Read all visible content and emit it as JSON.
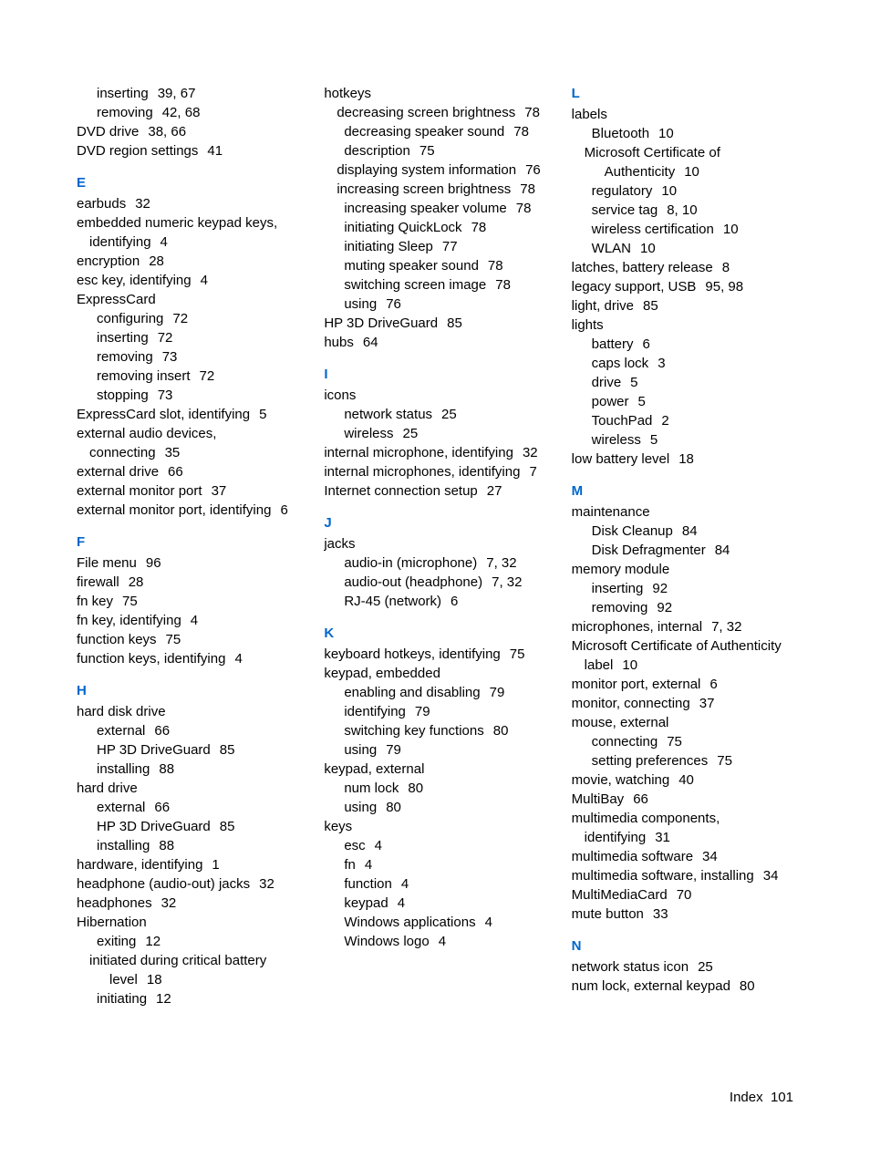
{
  "footer": {
    "label": "Index",
    "page": "101"
  },
  "columns": [
    [
      {
        "type": "sub",
        "term": "inserting",
        "pages": "39,  67"
      },
      {
        "type": "sub",
        "term": "removing",
        "pages": "42,  68"
      },
      {
        "type": "entry",
        "term": "DVD drive",
        "pages": "38,  66"
      },
      {
        "type": "entry",
        "term": "DVD region settings",
        "pages": "41"
      },
      {
        "type": "letter",
        "text": "E"
      },
      {
        "type": "entry",
        "term": "earbuds",
        "pages": "32"
      },
      {
        "type": "entry-hang",
        "term": "embedded numeric keypad keys, identifying",
        "pages": "4"
      },
      {
        "type": "entry",
        "term": "encryption",
        "pages": "28"
      },
      {
        "type": "entry",
        "term": "esc key, identifying",
        "pages": "4"
      },
      {
        "type": "entry",
        "term": "ExpressCard",
        "pages": ""
      },
      {
        "type": "sub",
        "term": "configuring",
        "pages": "72"
      },
      {
        "type": "sub",
        "term": "inserting",
        "pages": "72"
      },
      {
        "type": "sub",
        "term": "removing",
        "pages": "73"
      },
      {
        "type": "sub",
        "term": "removing insert",
        "pages": "72"
      },
      {
        "type": "sub",
        "term": "stopping",
        "pages": "73"
      },
      {
        "type": "entry",
        "term": "ExpressCard slot, identifying",
        "pages": "5"
      },
      {
        "type": "entry-hang",
        "term": "external audio devices, connecting",
        "pages": "35"
      },
      {
        "type": "entry",
        "term": "external drive",
        "pages": "66"
      },
      {
        "type": "entry",
        "term": "external monitor port",
        "pages": "37"
      },
      {
        "type": "entry-hang",
        "term": "external monitor port, identifying",
        "pages": "6"
      },
      {
        "type": "letter",
        "text": "F"
      },
      {
        "type": "entry",
        "term": "File menu",
        "pages": "96"
      },
      {
        "type": "entry",
        "term": "firewall",
        "pages": "28"
      },
      {
        "type": "entry",
        "term": "fn key",
        "pages": "75"
      },
      {
        "type": "entry",
        "term": "fn key, identifying",
        "pages": "4"
      },
      {
        "type": "entry",
        "term": "function keys",
        "pages": "75"
      },
      {
        "type": "entry",
        "term": "function keys, identifying",
        "pages": "4"
      },
      {
        "type": "letter",
        "text": "H"
      },
      {
        "type": "entry",
        "term": "hard disk drive",
        "pages": ""
      },
      {
        "type": "sub",
        "term": "external",
        "pages": "66"
      },
      {
        "type": "sub",
        "term": "HP 3D DriveGuard",
        "pages": "85"
      },
      {
        "type": "sub",
        "term": "installing",
        "pages": "88"
      },
      {
        "type": "entry",
        "term": "hard drive",
        "pages": ""
      },
      {
        "type": "sub",
        "term": "external",
        "pages": "66"
      },
      {
        "type": "sub",
        "term": "HP 3D DriveGuard",
        "pages": "85"
      },
      {
        "type": "sub",
        "term": "installing",
        "pages": "88"
      },
      {
        "type": "entry",
        "term": "hardware, identifying",
        "pages": "1"
      },
      {
        "type": "entry",
        "term": "headphone (audio-out) jacks",
        "pages": "32"
      },
      {
        "type": "entry",
        "term": "headphones",
        "pages": "32"
      },
      {
        "type": "entry",
        "term": "Hibernation",
        "pages": ""
      },
      {
        "type": "sub",
        "term": "exiting",
        "pages": "12"
      },
      {
        "type": "sub-hang",
        "term": "initiated during critical battery level",
        "pages": "18"
      },
      {
        "type": "sub",
        "term": "initiating",
        "pages": "12"
      }
    ],
    [
      {
        "type": "entry",
        "term": "hotkeys",
        "pages": ""
      },
      {
        "type": "sub-hang",
        "term": "decreasing screen brightness",
        "pages": "78"
      },
      {
        "type": "sub",
        "term": "decreasing speaker sound",
        "pages": "78"
      },
      {
        "type": "sub",
        "term": "description",
        "pages": "75"
      },
      {
        "type": "sub-hang",
        "term": "displaying system information",
        "pages": "76"
      },
      {
        "type": "sub-hang",
        "term": "increasing screen brightness",
        "pages": "78"
      },
      {
        "type": "sub",
        "term": "increasing speaker volume",
        "pages": "78"
      },
      {
        "type": "sub",
        "term": "initiating QuickLock",
        "pages": "78"
      },
      {
        "type": "sub",
        "term": "initiating Sleep",
        "pages": "77"
      },
      {
        "type": "sub",
        "term": "muting speaker sound",
        "pages": "78"
      },
      {
        "type": "sub",
        "term": "switching screen image",
        "pages": "78"
      },
      {
        "type": "sub",
        "term": "using",
        "pages": "76"
      },
      {
        "type": "entry",
        "term": "HP 3D DriveGuard",
        "pages": "85"
      },
      {
        "type": "entry",
        "term": "hubs",
        "pages": "64"
      },
      {
        "type": "letter",
        "text": "I"
      },
      {
        "type": "entry",
        "term": "icons",
        "pages": ""
      },
      {
        "type": "sub",
        "term": "network status",
        "pages": "25"
      },
      {
        "type": "sub",
        "term": "wireless",
        "pages": "25"
      },
      {
        "type": "entry-hang",
        "term": "internal microphone, identifying",
        "pages": "32"
      },
      {
        "type": "entry-hang",
        "term": "internal microphones, identifying",
        "pages": "7"
      },
      {
        "type": "entry",
        "term": "Internet connection setup",
        "pages": "27"
      },
      {
        "type": "letter",
        "text": "J"
      },
      {
        "type": "entry",
        "term": "jacks",
        "pages": ""
      },
      {
        "type": "sub",
        "term": "audio-in (microphone)",
        "pages": "7,  32"
      },
      {
        "type": "sub",
        "term": "audio-out (headphone)",
        "pages": "7,  32"
      },
      {
        "type": "sub",
        "term": "RJ-45 (network)",
        "pages": "6"
      },
      {
        "type": "letter",
        "text": "K"
      },
      {
        "type": "entry",
        "term": "keyboard hotkeys, identifying",
        "pages": "75"
      },
      {
        "type": "entry",
        "term": "keypad, embedded",
        "pages": ""
      },
      {
        "type": "sub",
        "term": "enabling and disabling",
        "pages": "79"
      },
      {
        "type": "sub",
        "term": "identifying",
        "pages": "79"
      },
      {
        "type": "sub",
        "term": "switching key functions",
        "pages": "80"
      },
      {
        "type": "sub",
        "term": "using",
        "pages": "79"
      },
      {
        "type": "entry",
        "term": "keypad, external",
        "pages": ""
      },
      {
        "type": "sub",
        "term": "num lock",
        "pages": "80"
      },
      {
        "type": "sub",
        "term": "using",
        "pages": "80"
      },
      {
        "type": "entry",
        "term": "keys",
        "pages": ""
      },
      {
        "type": "sub",
        "term": "esc",
        "pages": "4"
      },
      {
        "type": "sub",
        "term": "fn",
        "pages": "4"
      },
      {
        "type": "sub",
        "term": "function",
        "pages": "4"
      },
      {
        "type": "sub",
        "term": "keypad",
        "pages": "4"
      },
      {
        "type": "sub",
        "term": "Windows applications",
        "pages": "4"
      },
      {
        "type": "sub",
        "term": "Windows logo",
        "pages": "4"
      }
    ],
    [
      {
        "type": "letter",
        "text": "L",
        "first": true
      },
      {
        "type": "entry",
        "term": "labels",
        "pages": ""
      },
      {
        "type": "sub",
        "term": "Bluetooth",
        "pages": "10"
      },
      {
        "type": "sub-hang",
        "term": "Microsoft Certificate of Authenticity",
        "pages": "10"
      },
      {
        "type": "sub",
        "term": "regulatory",
        "pages": "10"
      },
      {
        "type": "sub",
        "term": "service tag",
        "pages": "8,  10"
      },
      {
        "type": "sub",
        "term": "wireless certification",
        "pages": "10"
      },
      {
        "type": "sub",
        "term": "WLAN",
        "pages": "10"
      },
      {
        "type": "entry",
        "term": "latches, battery release",
        "pages": "8"
      },
      {
        "type": "entry",
        "term": "legacy support, USB",
        "pages": "95,  98"
      },
      {
        "type": "entry",
        "term": "light, drive",
        "pages": "85"
      },
      {
        "type": "entry",
        "term": "lights",
        "pages": ""
      },
      {
        "type": "sub",
        "term": "battery",
        "pages": "6"
      },
      {
        "type": "sub",
        "term": "caps lock",
        "pages": "3"
      },
      {
        "type": "sub",
        "term": "drive",
        "pages": "5"
      },
      {
        "type": "sub",
        "term": "power",
        "pages": "5"
      },
      {
        "type": "sub",
        "term": "TouchPad",
        "pages": "2"
      },
      {
        "type": "sub",
        "term": "wireless",
        "pages": "5"
      },
      {
        "type": "entry",
        "term": "low battery level",
        "pages": "18"
      },
      {
        "type": "letter",
        "text": "M"
      },
      {
        "type": "entry",
        "term": "maintenance",
        "pages": ""
      },
      {
        "type": "sub",
        "term": "Disk Cleanup",
        "pages": "84"
      },
      {
        "type": "sub",
        "term": "Disk Defragmenter",
        "pages": "84"
      },
      {
        "type": "entry",
        "term": "memory module",
        "pages": ""
      },
      {
        "type": "sub",
        "term": "inserting",
        "pages": "92"
      },
      {
        "type": "sub",
        "term": "removing",
        "pages": "92"
      },
      {
        "type": "entry",
        "term": "microphones, internal",
        "pages": "7,  32"
      },
      {
        "type": "entry-hang",
        "term": "Microsoft Certificate of Authenticity label",
        "pages": "10"
      },
      {
        "type": "entry",
        "term": "monitor port, external",
        "pages": "6"
      },
      {
        "type": "entry",
        "term": "monitor, connecting",
        "pages": "37"
      },
      {
        "type": "entry",
        "term": "mouse, external",
        "pages": ""
      },
      {
        "type": "sub",
        "term": "connecting",
        "pages": "75"
      },
      {
        "type": "sub",
        "term": "setting preferences",
        "pages": "75"
      },
      {
        "type": "entry",
        "term": "movie, watching",
        "pages": "40"
      },
      {
        "type": "entry",
        "term": "MultiBay",
        "pages": "66"
      },
      {
        "type": "entry-hang",
        "term": "multimedia components, identifying",
        "pages": "31"
      },
      {
        "type": "entry",
        "term": "multimedia software",
        "pages": "34"
      },
      {
        "type": "entry",
        "term": "multimedia software, installing",
        "pages": "34"
      },
      {
        "type": "entry",
        "term": "MultiMediaCard",
        "pages": "70"
      },
      {
        "type": "entry",
        "term": "mute button",
        "pages": "33"
      },
      {
        "type": "letter",
        "text": "N"
      },
      {
        "type": "entry",
        "term": "network status icon",
        "pages": "25"
      },
      {
        "type": "entry",
        "term": "num lock, external keypad",
        "pages": "80"
      }
    ]
  ]
}
